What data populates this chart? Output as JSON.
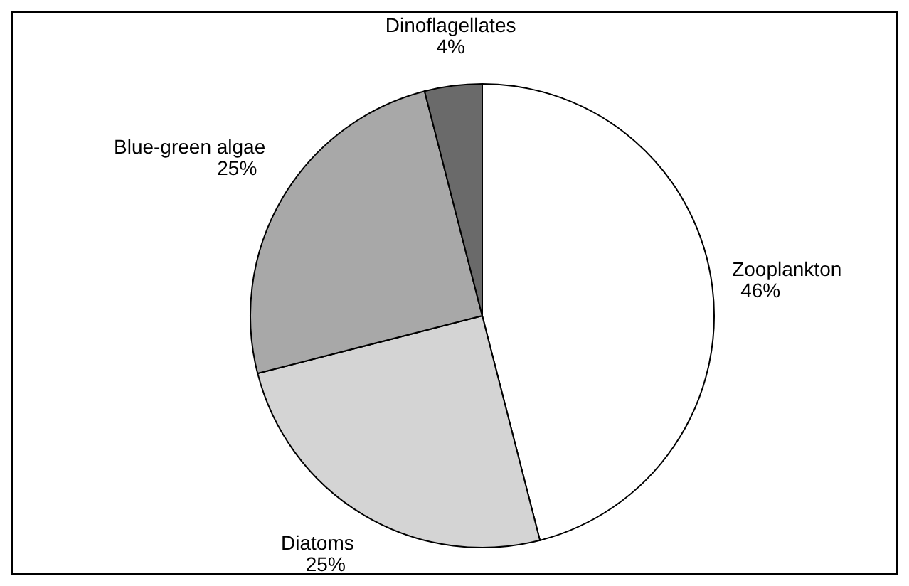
{
  "chart_data": {
    "type": "pie",
    "categories": [
      "Zooplankton",
      "Diatoms",
      "Blue-green algae",
      "Dinoflagellates"
    ],
    "values": [
      46,
      25,
      25,
      4
    ],
    "value_labels": [
      "46%",
      "25%",
      "25%",
      "4%"
    ],
    "colors": [
      "#ffffff",
      "#d4d4d4",
      "#a8a8a8",
      "#6a6a6a"
    ]
  }
}
